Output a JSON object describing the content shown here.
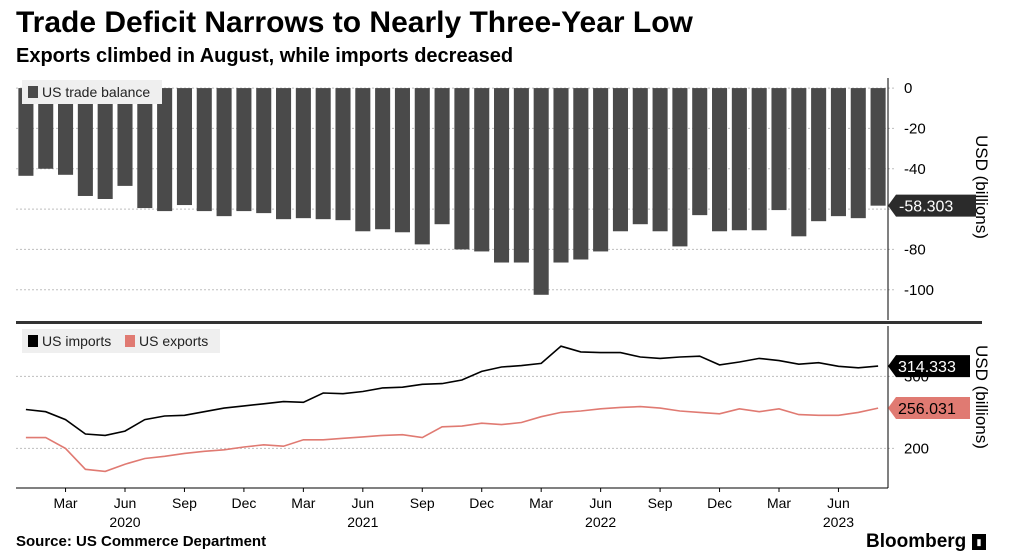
{
  "title": "Trade Deficit Narrows to Nearly Three-Year Low",
  "subtitle": "Exports climbed in August, while imports decreased",
  "source": "Source: US Commerce Department",
  "brand": "Bloomberg",
  "colors": {
    "balance": "#4a4a4a",
    "imports": "#000000",
    "exports": "#e07a72",
    "grid": "#bfbfbf",
    "divider": "#333333"
  },
  "chart_data": [
    {
      "type": "bar",
      "series": [
        {
          "name": "US trade balance",
          "color": "#4a4a4a",
          "values": [
            -43.5,
            -40.0,
            -43.0,
            -53.5,
            -55.0,
            -48.5,
            -59.5,
            -61.0,
            -58.0,
            -61.0,
            -63.5,
            -61.0,
            -62.0,
            -65.0,
            -64.5,
            -65.0,
            -65.5,
            -71.0,
            -70.0,
            -71.5,
            -77.5,
            -67.5,
            -80.0,
            -81.0,
            -86.5,
            -86.5,
            -102.5,
            -86.5,
            -85.0,
            -81.0,
            -71.0,
            -67.5,
            -71.0,
            -78.5,
            -63.0,
            -71.0,
            -70.5,
            -70.5,
            -60.5,
            -73.5,
            -66.0,
            -63.5,
            -64.5,
            -58.303
          ]
        }
      ],
      "ylabel": "USD (billions)",
      "ylim": [
        -115,
        5
      ],
      "yticks": [
        0,
        -20,
        -40,
        -60,
        -80,
        -100
      ],
      "last_value_label": "-58.303",
      "legend": "top-left",
      "grid": true
    },
    {
      "type": "line",
      "series": [
        {
          "name": "US imports",
          "color": "#000000",
          "values": [
            254.0,
            251.0,
            240.0,
            220.0,
            218.0,
            224.0,
            240.0,
            245.0,
            246.0,
            251.0,
            256.0,
            259.0,
            262.0,
            265.0,
            264.0,
            277.0,
            276.0,
            279.0,
            284.0,
            285.0,
            289.0,
            290.0,
            295.0,
            307.0,
            313.0,
            315.0,
            318.0,
            342.0,
            334.0,
            333.0,
            333.0,
            327.0,
            325.0,
            327.0,
            328.0,
            316.0,
            320.0,
            325.0,
            322.0,
            317.0,
            319.0,
            314.0,
            312.0,
            314.333
          ]
        },
        {
          "name": "US exports",
          "color": "#e07a72",
          "values": [
            215.0,
            215.0,
            200.0,
            171.0,
            168.0,
            178.0,
            186.0,
            189.0,
            193.0,
            196.0,
            198.0,
            202.0,
            205.0,
            203.0,
            212.0,
            212.0,
            214.0,
            216.0,
            218.0,
            219.0,
            215.0,
            230.0,
            231.0,
            235.0,
            233.0,
            236.0,
            244.0,
            250.0,
            252.0,
            255.0,
            257.0,
            258.0,
            256.0,
            252.0,
            250.0,
            248.0,
            255.0,
            251.0,
            255.0,
            247.0,
            246.0,
            246.0,
            250.0,
            256.031
          ]
        }
      ],
      "ylabel": "USD (billions)",
      "ylim": [
        145,
        370
      ],
      "yticks": [
        300,
        200
      ],
      "last_value_labels": [
        "314.333",
        "256.031"
      ],
      "legend": "top-left",
      "grid": true
    }
  ],
  "x_axis": {
    "month_ticks": [
      "Mar",
      "Jun",
      "Sep",
      "Dec",
      "Mar",
      "Jun",
      "Sep",
      "Dec",
      "Mar",
      "Jun",
      "Sep",
      "Dec",
      "Mar",
      "Jun"
    ],
    "year_labels": [
      "2020",
      "2021",
      "2022",
      "2023"
    ],
    "start": "2020-01",
    "end": "2023-08"
  }
}
